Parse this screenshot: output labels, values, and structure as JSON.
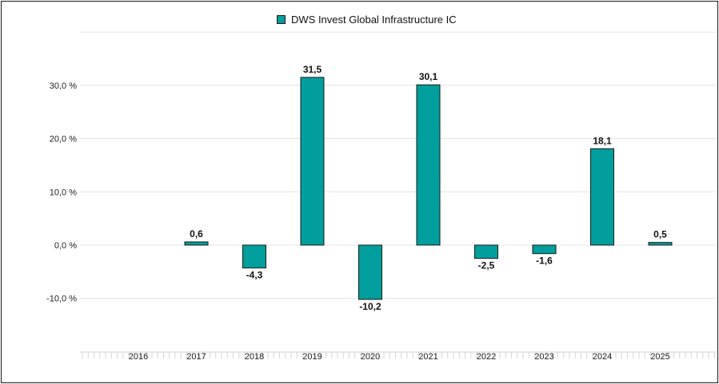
{
  "chart_data": {
    "type": "bar",
    "categories": [
      "2016",
      "2017",
      "2018",
      "2019",
      "2020",
      "2021",
      "2022",
      "2023",
      "2024",
      "2025"
    ],
    "series": [
      {
        "name": "DWS Invest Global Infrastructure IC",
        "values": [
          null,
          0.6,
          -4.3,
          31.5,
          -10.2,
          30.1,
          -2.5,
          -1.6,
          18.1,
          0.5
        ],
        "labels": [
          "",
          "0,6",
          "-4,3",
          "31,5",
          "-10,2",
          "30,1",
          "-2,5",
          "-1,6",
          "18,1",
          "0,5"
        ],
        "color": "#009e9c"
      }
    ],
    "y_ticks": [
      30,
      20,
      10,
      0,
      -10
    ],
    "y_tick_labels": [
      "30,0 %",
      "20,0 %",
      "10,0 %",
      "0,0 %",
      "-10,0 %"
    ],
    "ylim": [
      -20,
      40
    ],
    "grid": true,
    "legend_position": "top-center",
    "title": "",
    "xlabel": "",
    "ylabel": ""
  }
}
